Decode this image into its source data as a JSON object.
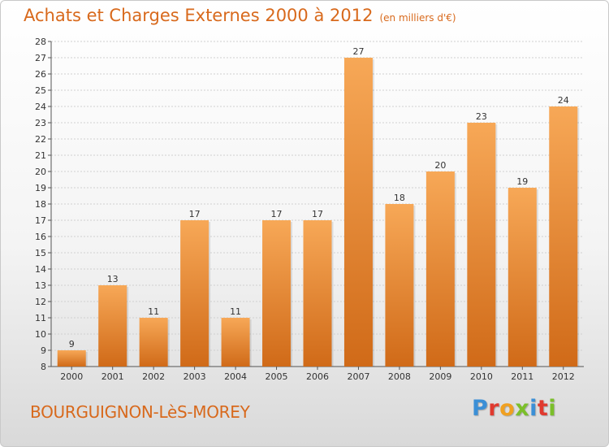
{
  "header": {
    "title": "Achats et Charges Externes 2000 à 2012",
    "subtitle": "(en milliers d'€)"
  },
  "footer": {
    "city": "BOURGUIGNON-LèS-MOREY",
    "brand": "Proxiti"
  },
  "colors": {
    "accent": "#d8691c",
    "bar_light": "#f7a857",
    "bar_dark": "#d06a18",
    "logo_letters": [
      "#3b8fd6",
      "#e03a2f",
      "#f0a020",
      "#7bbf2a",
      "#3b8fd6",
      "#e03a2f",
      "#7bbf2a"
    ]
  },
  "chart_data": {
    "type": "bar",
    "categories": [
      "2000",
      "2001",
      "2002",
      "2003",
      "2004",
      "2005",
      "2006",
      "2007",
      "2008",
      "2009",
      "2010",
      "2011",
      "2012"
    ],
    "values": [
      9,
      13,
      11,
      17,
      11,
      17,
      17,
      27,
      18,
      20,
      23,
      19,
      24
    ],
    "ylim": [
      8,
      28
    ],
    "yticks": [
      "8",
      "9",
      "10",
      "11",
      "12",
      "13",
      "14",
      "15",
      "16",
      "17",
      "18",
      "19",
      "20",
      "21",
      "22",
      "23",
      "24",
      "25",
      "26",
      "27",
      "28"
    ],
    "grid": "horizontal",
    "data_labels": true
  }
}
